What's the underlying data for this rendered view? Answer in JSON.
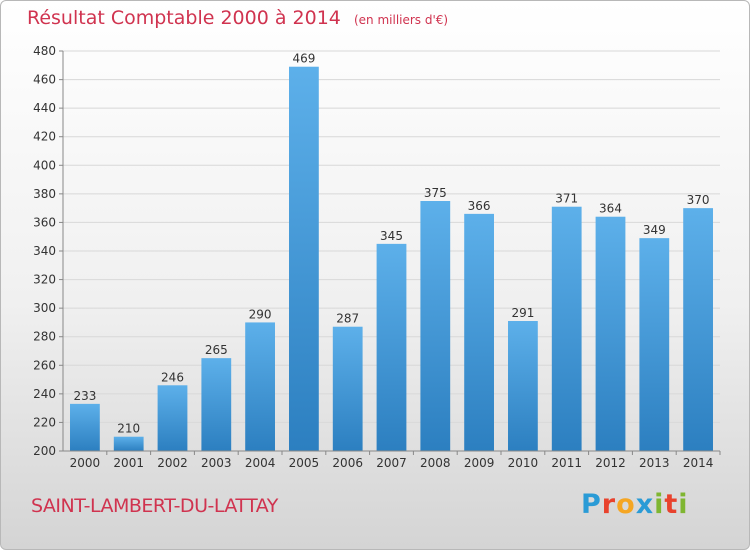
{
  "title": "Résultat Comptable 2000 à 2014",
  "subtitle": "(en milliers d'€)",
  "commune": "SAINT-LAMBERT-DU-LATTAY",
  "logo": {
    "letters": [
      {
        "ch": "P",
        "color": "#2a9bd6"
      },
      {
        "ch": "r",
        "color": "#e8422d"
      },
      {
        "ch": "o",
        "color": "#f5a623"
      },
      {
        "ch": "x",
        "color": "#2a9bd6"
      },
      {
        "ch": "i",
        "color": "#7fb631"
      },
      {
        "ch": "t",
        "color": "#e8422d"
      },
      {
        "ch": "i",
        "color": "#7fb631"
      }
    ]
  },
  "colors": {
    "bar_top": "#5db0ea",
    "bar_bottom": "#2c7fc0",
    "grid": "#d8d8d8",
    "axis_text": "#333333"
  },
  "chart_data": {
    "type": "bar",
    "title": "Résultat Comptable 2000 à 2014",
    "categories": [
      "2000",
      "2001",
      "2002",
      "2003",
      "2004",
      "2005",
      "2006",
      "2007",
      "2008",
      "2009",
      "2010",
      "2011",
      "2012",
      "2013",
      "2014"
    ],
    "values": [
      233,
      210,
      246,
      265,
      290,
      469,
      287,
      345,
      375,
      366,
      291,
      371,
      364,
      349,
      370
    ],
    "data_labels": [
      "233",
      "210",
      "246",
      "265",
      "290",
      "469",
      "287",
      "345",
      "375",
      "366",
      "291",
      "371",
      "364",
      "349",
      "370"
    ],
    "y_ticks": [
      "200",
      "220",
      "240",
      "260",
      "280",
      "300",
      "320",
      "340",
      "360",
      "380",
      "400",
      "420",
      "440",
      "460",
      "480"
    ],
    "ylim": [
      200,
      480
    ],
    "grid": true
  }
}
